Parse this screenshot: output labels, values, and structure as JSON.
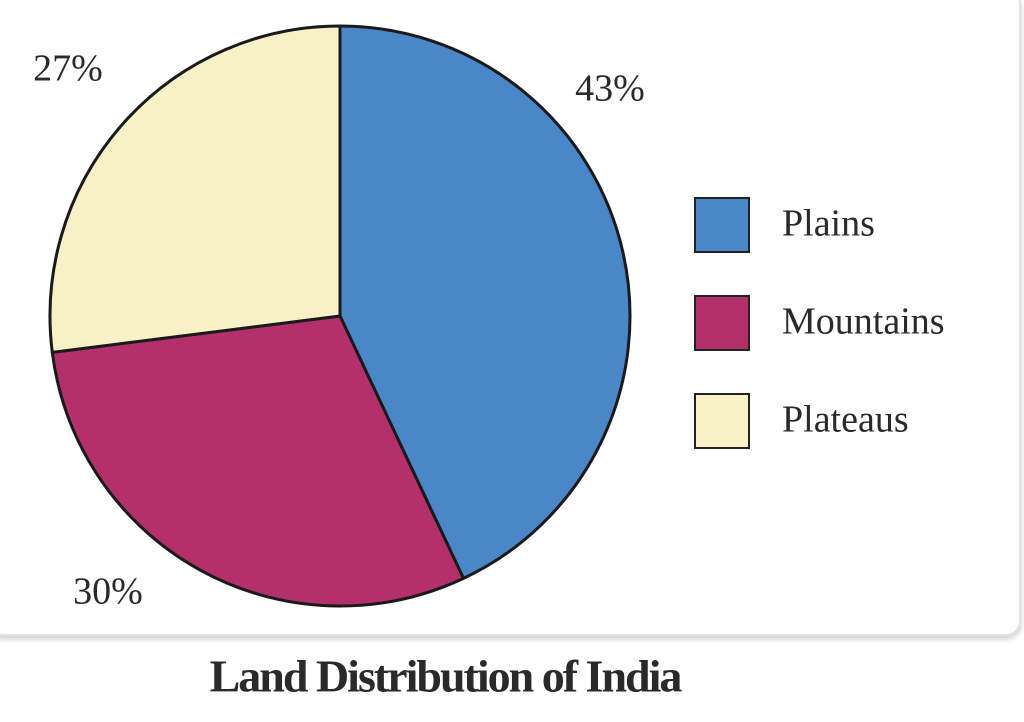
{
  "chart_data": {
    "type": "pie",
    "title": "Land Distribution of India",
    "categories": [
      "Plains",
      "Mountains",
      "Plateaus"
    ],
    "values": [
      43,
      30,
      27
    ],
    "value_labels": [
      "43%",
      "30%",
      "27%"
    ],
    "colors": [
      "#4a86c8",
      "#b3306b",
      "#f8f1c8"
    ],
    "legend": "right"
  }
}
